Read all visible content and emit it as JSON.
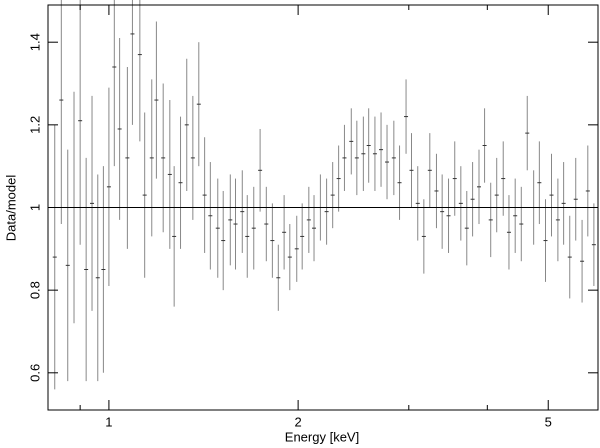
{
  "chart_data": {
    "type": "errorbar",
    "x_label": "Energy [keV]",
    "y_label": "Data/model",
    "xlim": [
      0.8,
      6
    ],
    "ylim": [
      0.51,
      1.49
    ],
    "xlog": true,
    "xticks": [
      1,
      2,
      5
    ],
    "xminorticks": [
      0.9,
      3,
      4
    ],
    "yticks": [
      0.6,
      0.8,
      1,
      1.2,
      1.4
    ],
    "hline": 1,
    "color": "#888888",
    "x": [
      0.82,
      0.84,
      0.86,
      0.88,
      0.9,
      0.92,
      0.94,
      0.96,
      0.98,
      1.0,
      1.02,
      1.04,
      1.07,
      1.09,
      1.12,
      1.14,
      1.17,
      1.19,
      1.22,
      1.25,
      1.27,
      1.3,
      1.33,
      1.36,
      1.39,
      1.42,
      1.45,
      1.49,
      1.52,
      1.56,
      1.59,
      1.63,
      1.66,
      1.7,
      1.74,
      1.78,
      1.82,
      1.86,
      1.9,
      1.94,
      1.99,
      2.03,
      2.08,
      2.12,
      2.17,
      2.22,
      2.27,
      2.32,
      2.37,
      2.43,
      2.48,
      2.54,
      2.59,
      2.65,
      2.71,
      2.77,
      2.84,
      2.9,
      2.97,
      3.03,
      3.1,
      3.17,
      3.24,
      3.32,
      3.39,
      3.47,
      3.55,
      3.63,
      3.71,
      3.79,
      3.88,
      3.96,
      4.05,
      4.14,
      4.24,
      4.33,
      4.43,
      4.53,
      4.63,
      4.74,
      4.84,
      4.95,
      5.06,
      5.18,
      5.29,
      5.41,
      5.53,
      5.66,
      5.78,
      5.91
    ],
    "values": [
      0.88,
      1.26,
      0.86,
      1.0,
      1.21,
      0.85,
      1.01,
      0.83,
      0.85,
      1.05,
      1.34,
      1.19,
      1.12,
      1.42,
      1.37,
      1.03,
      1.12,
      1.26,
      1.12,
      1.08,
      0.93,
      1.06,
      1.2,
      1.12,
      1.25,
      1.03,
      0.98,
      0.95,
      0.92,
      0.97,
      0.96,
      0.99,
      0.93,
      0.95,
      1.09,
      0.96,
      0.92,
      0.83,
      0.94,
      0.88,
      0.9,
      0.93,
      0.97,
      0.95,
      1.0,
      0.99,
      1.03,
      1.07,
      1.12,
      1.16,
      1.12,
      1.13,
      1.15,
      1.13,
      1.14,
      1.11,
      1.12,
      1.06,
      1.22,
      1.09,
      1.01,
      0.93,
      1.09,
      1.04,
      0.99,
      0.98,
      1.07,
      1.01,
      0.95,
      1.02,
      1.05,
      1.15,
      0.97,
      1.03,
      1.07,
      0.94,
      0.98,
      0.96,
      1.18,
      1.0,
      1.06,
      0.92,
      1.03,
      0.97,
      1.01,
      0.88,
      1.02,
      0.87,
      1.04,
      0.91
    ],
    "errors": [
      0.32,
      0.3,
      0.28,
      0.28,
      0.3,
      0.27,
      0.26,
      0.25,
      0.25,
      0.24,
      0.24,
      0.22,
      0.22,
      0.22,
      0.21,
      0.2,
      0.19,
      0.19,
      0.18,
      0.18,
      0.17,
      0.16,
      0.16,
      0.15,
      0.15,
      0.14,
      0.13,
      0.12,
      0.12,
      0.11,
      0.11,
      0.1,
      0.1,
      0.1,
      0.1,
      0.09,
      0.09,
      0.08,
      0.09,
      0.08,
      0.08,
      0.08,
      0.08,
      0.08,
      0.08,
      0.08,
      0.08,
      0.08,
      0.08,
      0.08,
      0.09,
      0.09,
      0.09,
      0.09,
      0.09,
      0.09,
      0.09,
      0.09,
      0.09,
      0.09,
      0.09,
      0.09,
      0.09,
      0.09,
      0.09,
      0.09,
      0.09,
      0.09,
      0.09,
      0.09,
      0.09,
      0.09,
      0.09,
      0.09,
      0.09,
      0.09,
      0.09,
      0.09,
      0.09,
      0.09,
      0.1,
      0.1,
      0.1,
      0.1,
      0.1,
      0.1,
      0.1,
      0.1,
      0.11,
      0.1
    ]
  }
}
